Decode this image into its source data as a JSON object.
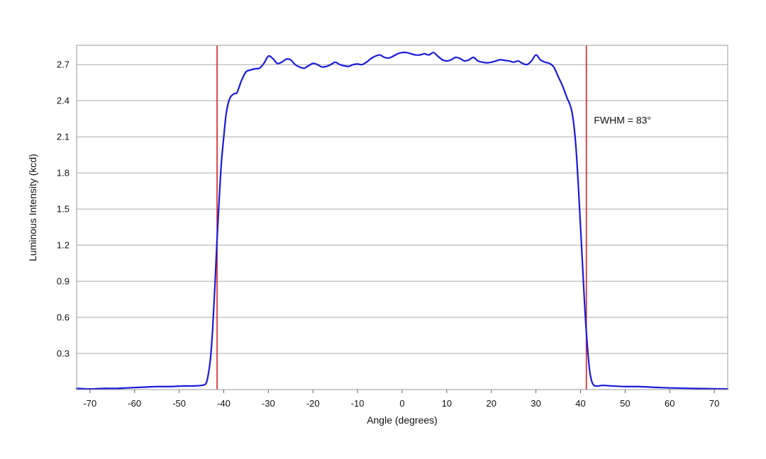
{
  "chart_data": {
    "type": "line",
    "xlabel": "Angle (degrees)",
    "ylabel": "Luminous Intensity (kcd)",
    "xlim": [
      -73,
      73
    ],
    "ylim": [
      0,
      2.86
    ],
    "x_ticks": [
      -70,
      -60,
      -50,
      -40,
      -30,
      -20,
      -10,
      0,
      10,
      20,
      30,
      40,
      50,
      60,
      70
    ],
    "x_tick_labels": [
      "-70",
      "-60",
      "-50",
      "-40",
      "-30",
      "-20",
      "-10",
      "0",
      "10",
      "20",
      "30",
      "40",
      "50",
      "60",
      "70"
    ],
    "y_ticks": [
      0.3,
      0.6,
      0.9,
      1.2,
      1.5,
      1.8,
      2.1,
      2.4,
      2.7
    ],
    "y_tick_labels": [
      "0.3",
      "0.6",
      "0.9",
      "1.2",
      "1.5",
      "1.8",
      "2.1",
      "2.4",
      "2.7"
    ],
    "grid": "horizontal",
    "legend": "none",
    "series": [
      {
        "color": "#1a1adb",
        "x": [
          -73,
          -70,
          -67,
          -64,
          -61,
          -58,
          -55,
          -52,
          -49,
          -47,
          -45,
          -44,
          -43.5,
          -43,
          -42.5,
          -42,
          -41.5,
          -41,
          -40.5,
          -40,
          -39.5,
          -39,
          -38.5,
          -38,
          -37.5,
          -37,
          -36,
          -35,
          -34,
          -33,
          -32,
          -31,
          -30,
          -29,
          -28,
          -27,
          -26,
          -25,
          -24,
          -23,
          -22,
          -21,
          -20,
          -19,
          -18,
          -17,
          -16,
          -15,
          -14,
          -13,
          -12,
          -11,
          -10,
          -9,
          -8,
          -7,
          -6,
          -5,
          -4,
          -3,
          -2,
          -1,
          0,
          1,
          2,
          3,
          4,
          5,
          6,
          7,
          8,
          9,
          10,
          11,
          12,
          13,
          14,
          15,
          16,
          17,
          18,
          19,
          20,
          21,
          22,
          23,
          24,
          25,
          26,
          27,
          28,
          29,
          30,
          31,
          32,
          33,
          34,
          35,
          36,
          37,
          37.5,
          38,
          38.5,
          39,
          39.5,
          40,
          40.5,
          41,
          41.5,
          42,
          42.5,
          43,
          43.5,
          44,
          45,
          47,
          50,
          53,
          56,
          59,
          62,
          65,
          68,
          71,
          73
        ],
        "y": [
          0.01,
          0.005,
          0.01,
          0.01,
          0.015,
          0.02,
          0.025,
          0.025,
          0.03,
          0.03,
          0.035,
          0.05,
          0.12,
          0.25,
          0.5,
          0.85,
          1.25,
          1.6,
          1.9,
          2.1,
          2.28,
          2.38,
          2.43,
          2.45,
          2.46,
          2.47,
          2.57,
          2.64,
          2.655,
          2.665,
          2.67,
          2.71,
          2.77,
          2.75,
          2.71,
          2.72,
          2.745,
          2.74,
          2.7,
          2.68,
          2.67,
          2.69,
          2.71,
          2.7,
          2.68,
          2.685,
          2.7,
          2.72,
          2.7,
          2.69,
          2.685,
          2.7,
          2.705,
          2.7,
          2.72,
          2.75,
          2.77,
          2.78,
          2.76,
          2.755,
          2.77,
          2.79,
          2.8,
          2.8,
          2.79,
          2.78,
          2.78,
          2.79,
          2.78,
          2.8,
          2.77,
          2.74,
          2.73,
          2.74,
          2.76,
          2.75,
          2.73,
          2.74,
          2.76,
          2.73,
          2.72,
          2.715,
          2.72,
          2.73,
          2.74,
          2.735,
          2.73,
          2.72,
          2.73,
          2.71,
          2.7,
          2.73,
          2.78,
          2.74,
          2.72,
          2.71,
          2.68,
          2.6,
          2.52,
          2.42,
          2.38,
          2.32,
          2.2,
          2.0,
          1.7,
          1.35,
          1.0,
          0.65,
          0.38,
          0.17,
          0.07,
          0.035,
          0.03,
          0.03,
          0.035,
          0.03,
          0.025,
          0.025,
          0.02,
          0.015,
          0.012,
          0.01,
          0.008,
          0.006,
          0.005
        ]
      }
    ],
    "vertical_lines": [
      {
        "x": -41.5,
        "color": "#d42020"
      },
      {
        "x": 41.3,
        "color": "#d42020"
      }
    ],
    "annotations": [
      {
        "text": "FWHM = 83°",
        "x": 43,
        "y": 2.24
      }
    ],
    "colors": {
      "grid": "#aaaaaa",
      "frame": "#999999",
      "series": "#1a1adb",
      "marker_lines": "#d42020"
    }
  }
}
